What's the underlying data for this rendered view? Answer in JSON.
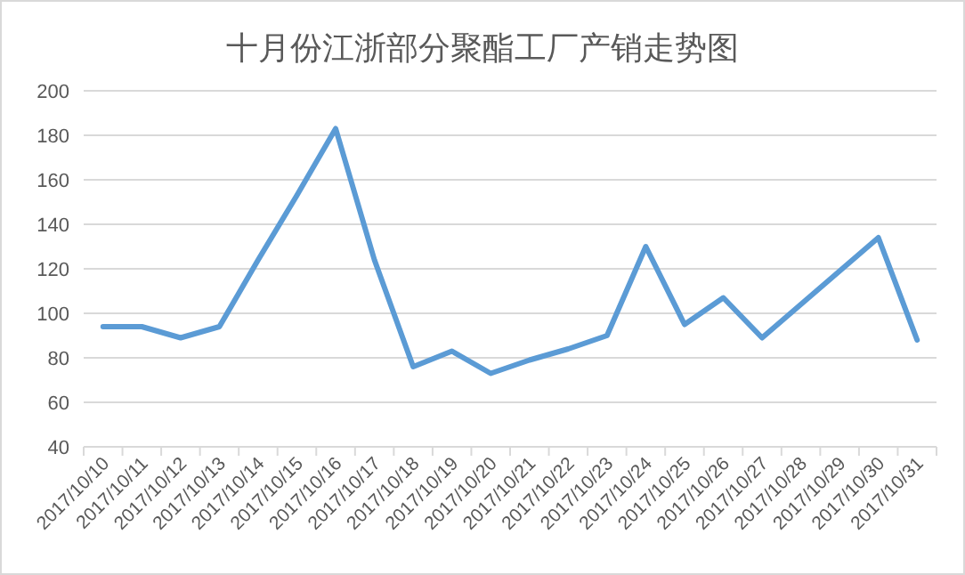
{
  "chart_data": {
    "type": "line",
    "title": "十月份江浙部分聚酯工厂产销走势图",
    "categories": [
      "2017/10/10",
      "2017/10/11",
      "2017/10/12",
      "2017/10/13",
      "2017/10/14",
      "2017/10/15",
      "2017/10/16",
      "2017/10/17",
      "2017/10/18",
      "2017/10/19",
      "2017/10/20",
      "2017/10/21",
      "2017/10/22",
      "2017/10/23",
      "2017/10/24",
      "2017/10/25",
      "2017/10/26",
      "2017/10/27",
      "2017/10/28",
      "2017/10/29",
      "2017/10/30",
      "2017/10/31"
    ],
    "series": [
      {
        "color": "#5b9bd5",
        "values": [
          94,
          94,
          89,
          94,
          124,
          153,
          183,
          124,
          76,
          83,
          73,
          79,
          84,
          90,
          130,
          95,
          107,
          89,
          104,
          119,
          134,
          88
        ]
      }
    ],
    "ylim": [
      40,
      200
    ],
    "yticks": [
      40,
      60,
      80,
      100,
      120,
      140,
      160,
      180,
      200
    ],
    "grid": "y",
    "marker": "none",
    "line_style": "solid"
  }
}
